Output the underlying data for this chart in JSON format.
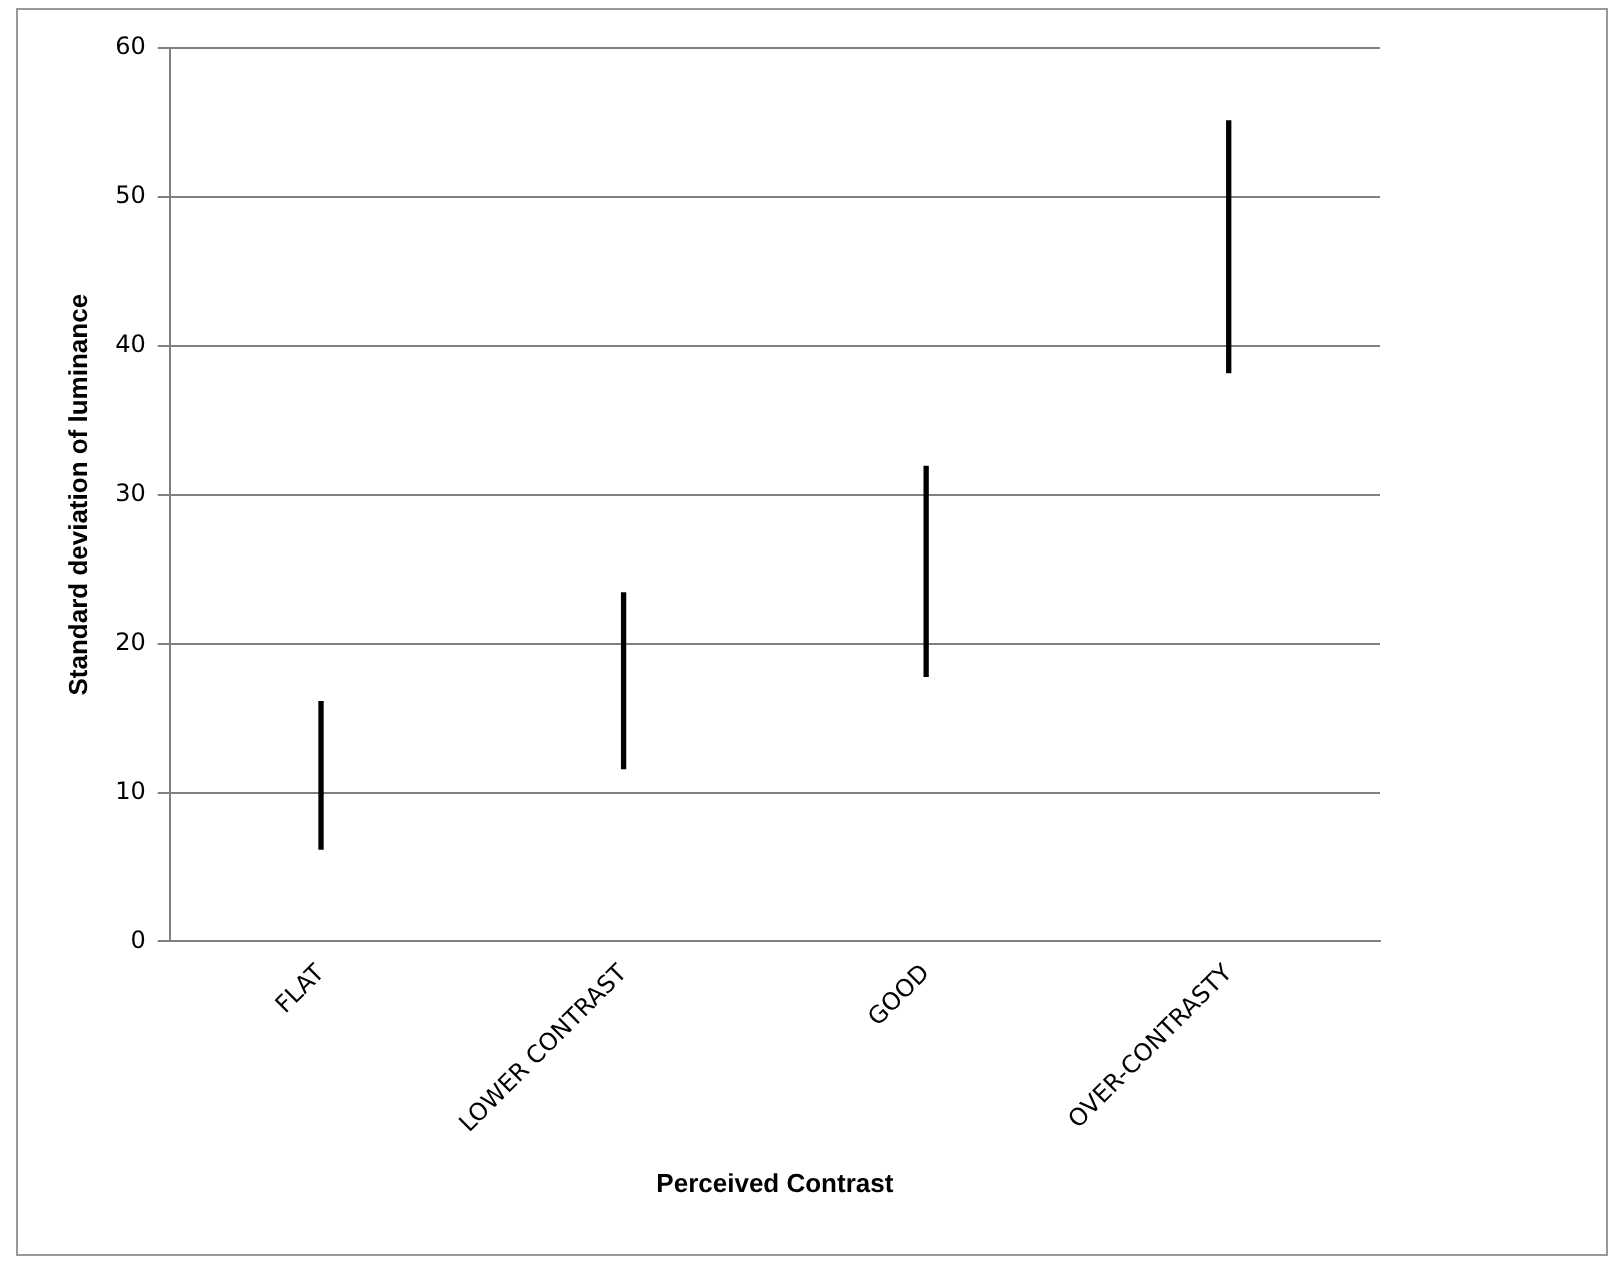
{
  "chart_data": {
    "type": "bar",
    "xlabel": "Perceived Contrast",
    "ylabel": "Standard deviation of luminance",
    "categories": [
      "FLAT",
      "LOWER CONTRAST",
      "GOOD",
      "OVER-CONTRASTY"
    ],
    "base": [
      6.2,
      11.6,
      17.8,
      38.2
    ],
    "values": [
      9.9,
      11.8,
      14.1,
      16.9
    ],
    "color": "#000000",
    "ylim": [
      0,
      60
    ],
    "yticks": [
      0,
      10,
      20,
      30,
      40,
      50,
      60
    ],
    "grid": "y",
    "legend": false
  }
}
